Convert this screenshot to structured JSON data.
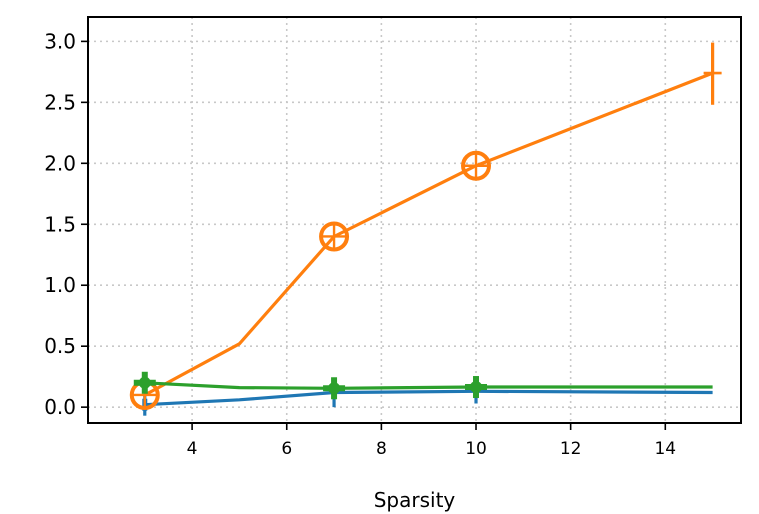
{
  "chart_data": {
    "type": "line",
    "xlabel": "Sparsity",
    "ylabel": "",
    "xlim": [
      1.8,
      15.6
    ],
    "ylim": [
      -0.13,
      3.2
    ],
    "xticks": [
      4,
      6,
      8,
      10,
      12,
      14
    ],
    "yticks": [
      0.0,
      0.5,
      1.0,
      1.5,
      2.0,
      2.5,
      3.0
    ],
    "xtick_labels": [
      "4",
      "6",
      "8",
      "10",
      "12",
      "14"
    ],
    "ytick_labels": [
      "0.0",
      "0.5",
      "1.0",
      "1.5",
      "2.0",
      "2.5",
      "3.0"
    ],
    "grid": true,
    "legend": "none",
    "series": [
      {
        "color": "#1f77b4",
        "marker": "vline",
        "x": [
          3,
          5,
          7,
          10,
          15
        ],
        "y": [
          0.02,
          0.06,
          0.12,
          0.13,
          0.12
        ],
        "marker_x": [
          3,
          7,
          10
        ],
        "errors": [
          {
            "x": 3,
            "low": -0.07,
            "high": 0.1
          },
          {
            "x": 7,
            "low": 0.0,
            "high": 0.2
          },
          {
            "x": 10,
            "low": 0.03,
            "high": 0.22
          }
        ]
      },
      {
        "color": "#ff7f0e",
        "marker": "circle",
        "x": [
          3,
          5,
          7,
          10,
          15
        ],
        "y": [
          0.1,
          0.52,
          1.4,
          1.98,
          2.74
        ],
        "marker_x": [
          3,
          7,
          10
        ],
        "errors": [
          {
            "x": 15,
            "low": 2.48,
            "high": 2.99
          }
        ]
      },
      {
        "color": "#2ca02c",
        "marker": "plus",
        "x": [
          3,
          5,
          7,
          10,
          15
        ],
        "y": [
          0.2,
          0.16,
          0.155,
          0.165,
          0.165
        ],
        "marker_x": [
          3,
          7,
          10
        ],
        "errors": []
      }
    ]
  }
}
